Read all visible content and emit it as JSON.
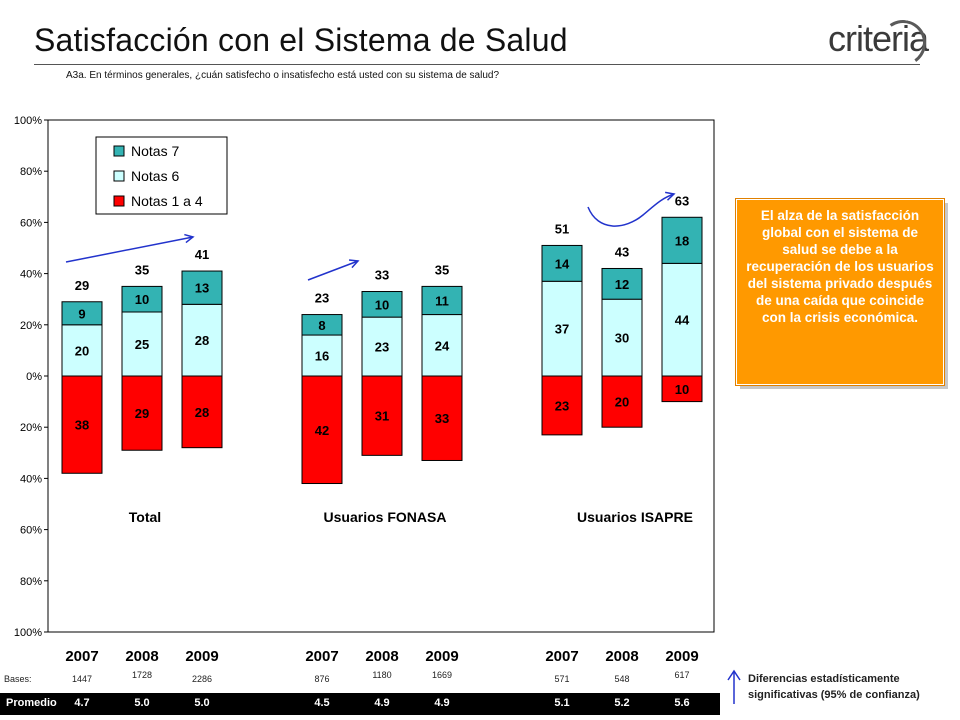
{
  "header": {
    "title": "Satisfacción con el Sistema de Salud",
    "logo_text": "criteria",
    "question": "A3a. En términos generales, ¿cuán satisfecho o insatisfecho está usted con su sistema de salud?"
  },
  "chart_data": {
    "type": "bar",
    "stacking": "diverging",
    "ylim": [
      -100,
      100
    ],
    "y_ticks": [
      "100%",
      "80%",
      "60%",
      "40%",
      "20%",
      "0%",
      "20%",
      "40%",
      "60%",
      "80%",
      "100%"
    ],
    "legend": [
      "Notas 7",
      "Notas 6",
      "Notas 1 a 4"
    ],
    "legend_placement": "top-left",
    "colors": {
      "Notas 7": "#33b3b3",
      "Notas 6": "#ccffff",
      "Notas 1 a 4": "#ff0000"
    },
    "groups": [
      {
        "name": "Total",
        "bars": [
          {
            "year": "2007",
            "notas_1_a_4": 38,
            "notas_6": 20,
            "notas_7": 9,
            "top_total": 29,
            "base": "1447",
            "promedio": "4.7"
          },
          {
            "year": "2008",
            "notas_1_a_4": 29,
            "notas_6": 25,
            "notas_7": 10,
            "top_total": 35,
            "base": "1728",
            "promedio": "5.0"
          },
          {
            "year": "2009",
            "notas_1_a_4": 28,
            "notas_6": 28,
            "notas_7": 13,
            "top_total": 41,
            "base": "2286",
            "promedio": "5.0"
          }
        ]
      },
      {
        "name": "Usuarios FONASA",
        "bars": [
          {
            "year": "2007",
            "notas_1_a_4": 42,
            "notas_6": 16,
            "notas_7": 8,
            "top_total": 23,
            "base": "876",
            "promedio": "4.5"
          },
          {
            "year": "2008",
            "notas_1_a_4": 31,
            "notas_6": 23,
            "notas_7": 10,
            "top_total": 33,
            "base": "1180",
            "promedio": "4.9"
          },
          {
            "year": "2009",
            "notas_1_a_4": 33,
            "notas_6": 24,
            "notas_7": 11,
            "top_total": 35,
            "base": "1669",
            "promedio": "4.9"
          }
        ]
      },
      {
        "name": "Usuarios ISAPRE",
        "bars": [
          {
            "year": "2007",
            "notas_1_a_4": 23,
            "notas_6": 37,
            "notas_7": 14,
            "top_total": 51,
            "base": "571",
            "promedio": "5.1"
          },
          {
            "year": "2008",
            "notas_1_a_4": 20,
            "notas_6": 30,
            "notas_7": 12,
            "top_total": 43,
            "base": "548",
            "promedio": "5.2"
          },
          {
            "year": "2009",
            "notas_1_a_4": 10,
            "notas_6": 44,
            "notas_7": 18,
            "top_total": 63,
            "base": "617",
            "promedio": "5.6"
          }
        ]
      }
    ]
  },
  "callout": {
    "text": "El alza de la satisfacción global con el sistema de salud se debe a la recuperación de los usuarios del sistema privado después de una caída que coincide con la crisis económica."
  },
  "footer": {
    "bases_label": "Bases:",
    "promedio_label": "Promedio",
    "footnote_line1": "Diferencias estadísticamente",
    "footnote_line2": "significativas (95% de confianza)"
  }
}
